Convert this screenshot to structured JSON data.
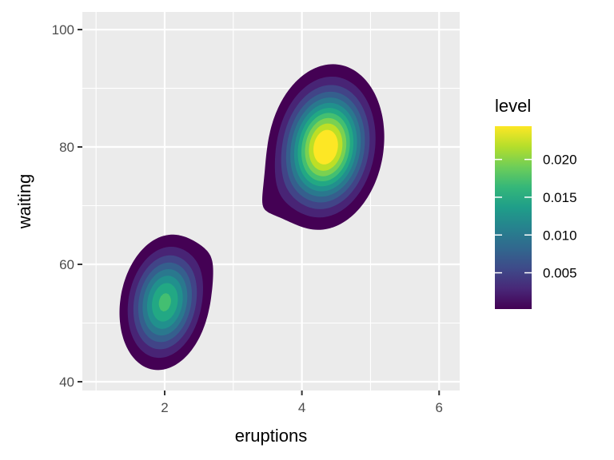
{
  "chart_data": {
    "type": "filled-density-contour",
    "xlabel": "eruptions",
    "ylabel": "waiting",
    "xlim": [
      0.8,
      6.3
    ],
    "ylim": [
      38.5,
      103.0
    ],
    "x_ticks": [
      2,
      4,
      6
    ],
    "y_ticks": [
      40,
      60,
      80,
      100
    ],
    "grid": true,
    "legend": {
      "title": "level",
      "placement": "right",
      "range": [
        0.0002,
        0.0244
      ],
      "ticks": [
        0.005,
        0.01,
        0.015,
        0.02
      ],
      "tick_labels": [
        "0.005",
        "0.010",
        "0.015",
        "0.020"
      ],
      "colors": [
        "#440154",
        "#482878",
        "#3e4a89",
        "#31688e",
        "#26828e",
        "#1f9e89",
        "#35b779",
        "#6ece58",
        "#b5de2b",
        "#fde725"
      ]
    },
    "level_breaks": [
      0.002,
      0.004,
      0.006,
      0.008,
      0.01,
      0.012,
      0.014,
      0.016,
      0.018,
      0.02,
      0.022
    ],
    "band_colors": [
      "#440154",
      "#482475",
      "#414487",
      "#355f8d",
      "#2a788e",
      "#21908d",
      "#22a884",
      "#43bf71",
      "#7ad151",
      "#bddf26",
      "#fde725"
    ],
    "density_peaks": [
      {
        "x": 2.0,
        "y": 53.5,
        "level": 0.0165
      },
      {
        "x": 4.35,
        "y": 80.0,
        "level": 0.0244
      }
    ]
  }
}
